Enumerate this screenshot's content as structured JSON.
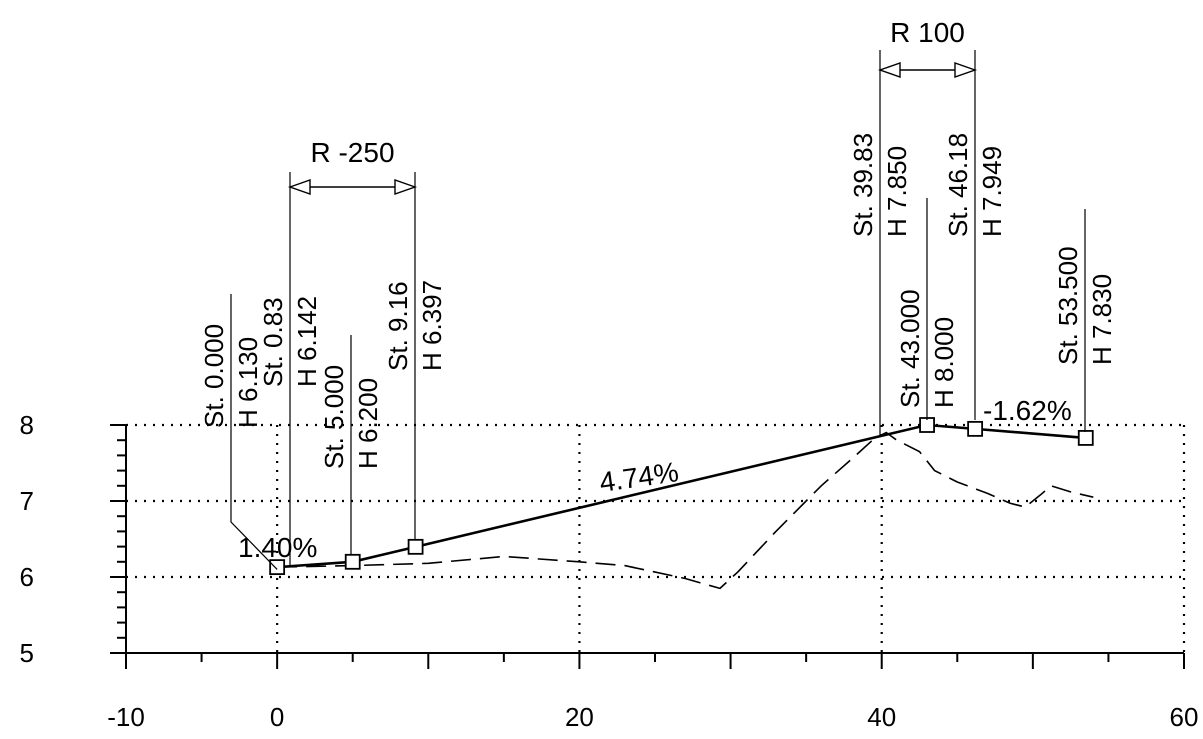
{
  "chart_data": {
    "type": "line",
    "title": "",
    "xlabel": "",
    "ylabel": "",
    "xlim": [
      -10,
      60
    ],
    "ylim": [
      5,
      8
    ],
    "x_ticks": [
      "-10",
      "0",
      "20",
      "40",
      "60"
    ],
    "y_ticks": [
      "5",
      "6",
      "7",
      "8"
    ],
    "grid": "dotted",
    "series": [
      {
        "style": "solid",
        "points": [
          [
            0.0,
            6.13
          ],
          [
            5.0,
            6.2
          ],
          [
            9.16,
            6.397
          ],
          [
            43.0,
            8.0
          ],
          [
            46.18,
            7.949
          ],
          [
            53.5,
            7.83
          ]
        ]
      },
      {
        "style": "dashed",
        "points": [
          [
            0.0,
            6.13
          ],
          [
            5.0,
            6.15
          ],
          [
            10.0,
            6.18
          ],
          [
            15.0,
            6.27
          ],
          [
            20.0,
            6.2
          ],
          [
            23.0,
            6.15
          ],
          [
            27.0,
            5.98
          ],
          [
            29.3,
            5.85
          ],
          [
            30.5,
            6.07
          ],
          [
            33.0,
            6.6
          ],
          [
            36.0,
            7.2
          ],
          [
            38.0,
            7.55
          ],
          [
            39.5,
            7.82
          ],
          [
            40.3,
            7.9
          ],
          [
            41.0,
            7.8
          ],
          [
            42.5,
            7.65
          ],
          [
            43.5,
            7.4
          ],
          [
            45.0,
            7.25
          ],
          [
            47.0,
            7.1
          ],
          [
            48.5,
            6.97
          ],
          [
            49.5,
            6.92
          ],
          [
            50.5,
            7.08
          ],
          [
            51.2,
            7.2
          ],
          [
            52.5,
            7.12
          ],
          [
            54.0,
            7.05
          ]
        ]
      }
    ],
    "vertices": [
      {
        "x": 0.0,
        "y": 6.13,
        "label_station": "St. 0.000",
        "label_height": "H  6.130"
      },
      {
        "x": 5.0,
        "y": 6.2,
        "label_station": "St. 5.000",
        "label_height": "H  6.200"
      },
      {
        "x": 43.0,
        "y": 8.0,
        "label_station": "St. 43.000",
        "label_height": "H  8.000"
      },
      {
        "x": 53.5,
        "y": 7.83,
        "label_station": "St. 53.500",
        "label_height": "H  7.830"
      }
    ],
    "curve_points": [
      {
        "x": 0.83,
        "label_station": "St. 0.83",
        "label_height": "H  6.142"
      },
      {
        "x": 9.16,
        "y": 6.397,
        "label_station": "St.  9.16",
        "label_height": "H  6.397"
      },
      {
        "x": 39.83,
        "label_station": "St. 39.83",
        "label_height": "H  7.850"
      },
      {
        "x": 46.18,
        "y": 7.949,
        "label_station": "St.  46.18",
        "label_height": "H  7.949"
      }
    ],
    "grades": [
      "1.40%",
      "4.74%",
      "-1.62%"
    ],
    "radii": [
      "R -250",
      "R 100"
    ]
  }
}
